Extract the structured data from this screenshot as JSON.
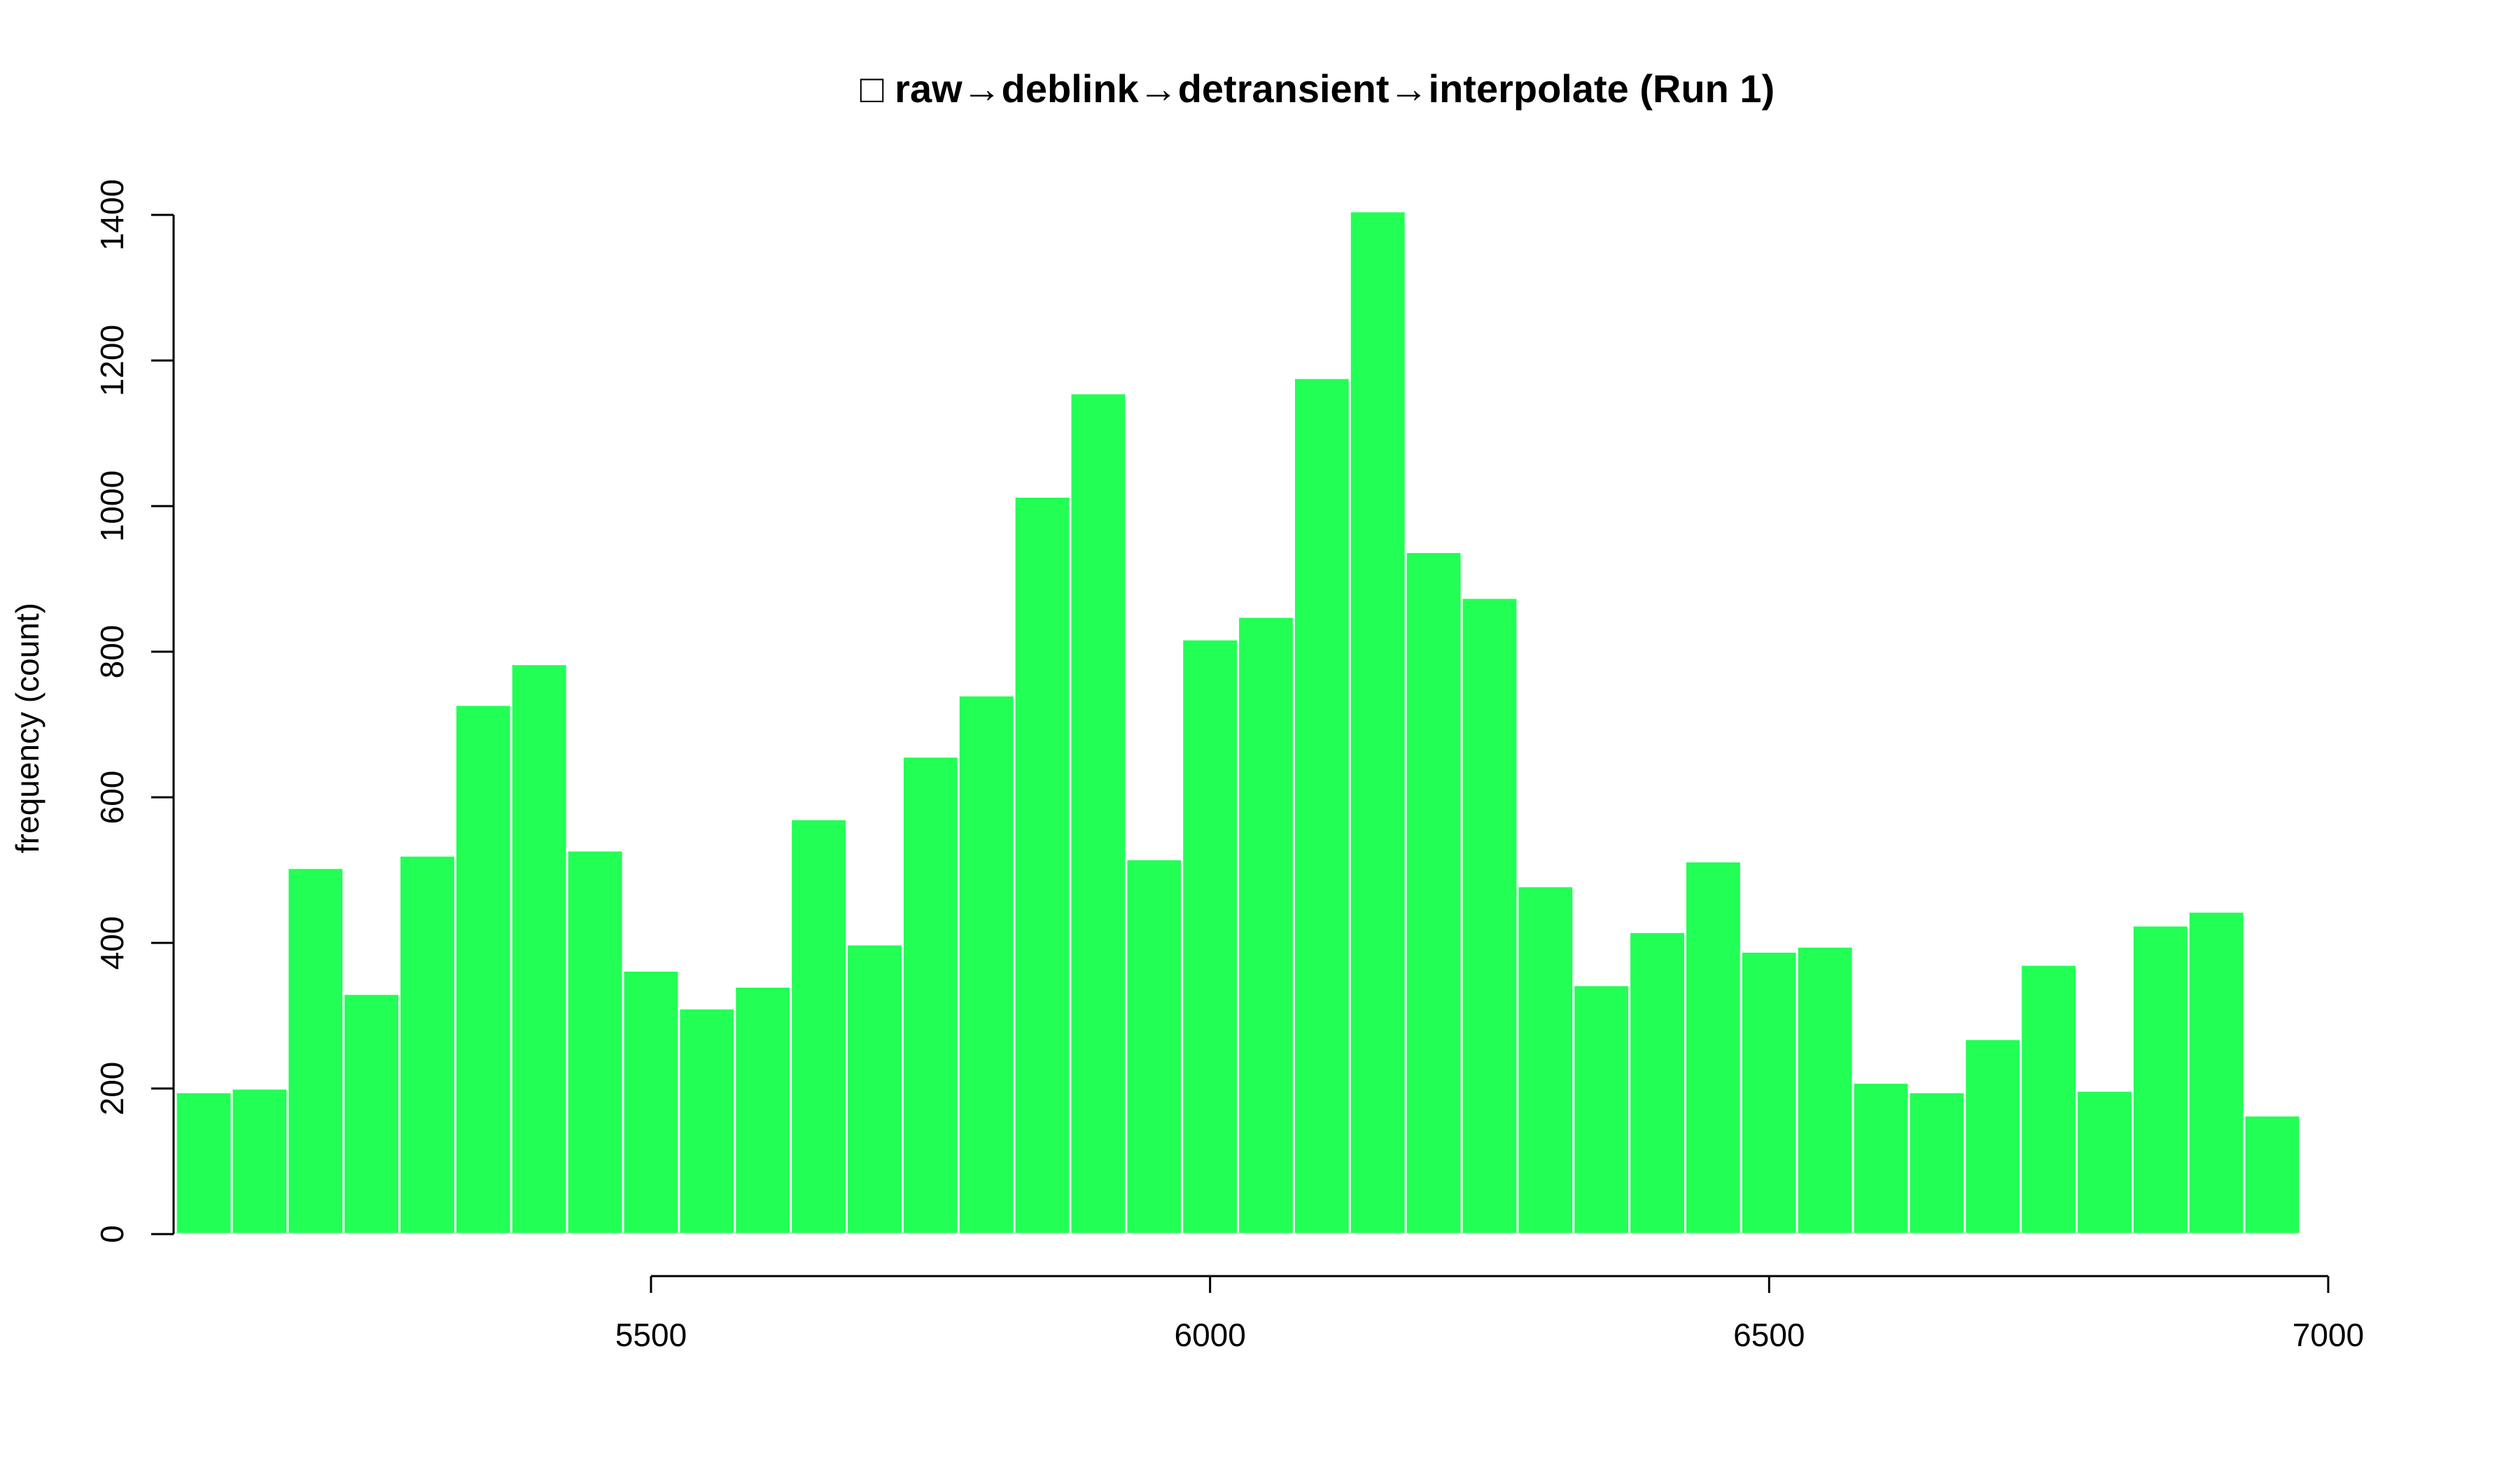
{
  "chart_data": {
    "type": "bar",
    "title": "□ raw→deblink→detransient→interpolate (Run 1)",
    "xlabel": "",
    "ylabel": "frequency (count)",
    "bar_color": "#22ff55",
    "bar_edge_color": "#ffffff",
    "background": "#ffffff",
    "bin_width": 50,
    "bins_start": 5075,
    "xlim": [
      5075,
      7025
    ],
    "ylim": [
      0,
      1400
    ],
    "x_ticks": [
      5500,
      6000,
      6500,
      7000
    ],
    "x_tick_labels": [
      "5500",
      "6000",
      "6500",
      "7000"
    ],
    "y_ticks": [
      0,
      200,
      400,
      600,
      800,
      1000,
      1200,
      1400
    ],
    "y_tick_labels": [
      "0",
      "200",
      "400",
      "600",
      "800",
      "1000",
      "1200",
      "1400"
    ],
    "x_axis_range": [
      5500,
      7000
    ],
    "y_axis_range": [
      0,
      1400
    ],
    "grid": false,
    "legend": "none",
    "values": [
      195,
      200,
      503,
      330,
      520,
      727,
      783,
      527,
      362,
      310,
      340,
      570,
      398,
      656,
      740,
      1013,
      1155,
      515,
      817,
      848,
      1176,
      1405,
      937,
      874,
      478,
      342,
      415,
      512,
      388,
      395,
      208,
      195,
      268,
      370,
      197,
      424,
      443,
      163
    ]
  }
}
